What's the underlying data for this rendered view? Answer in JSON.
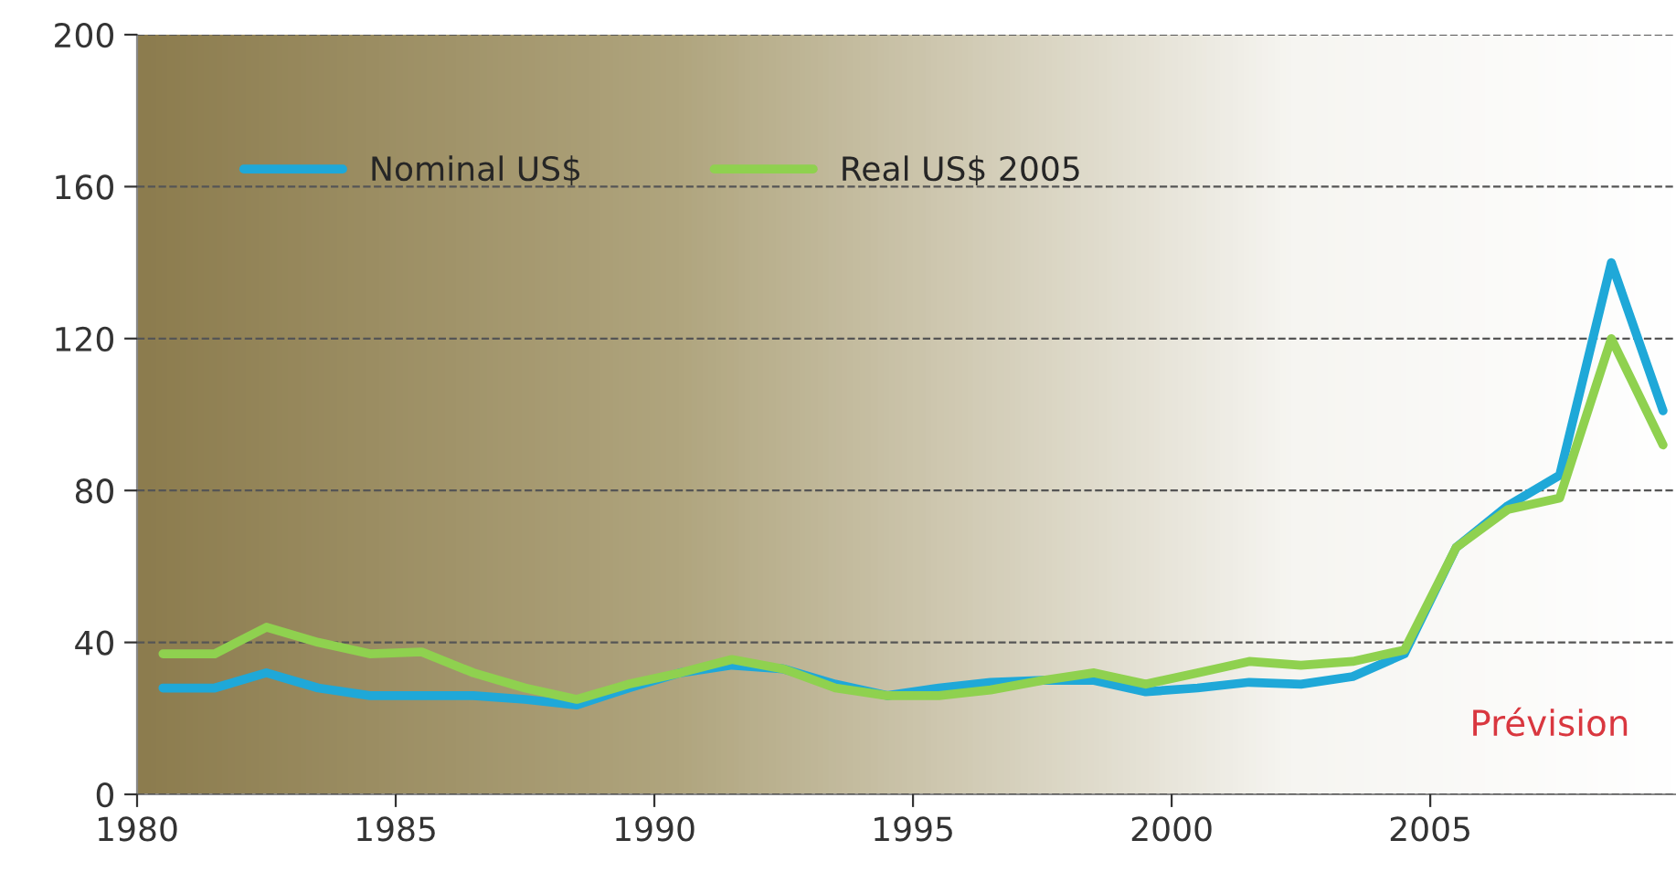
{
  "chart_data": {
    "type": "line",
    "x": [
      1980.5,
      1981.5,
      1982.5,
      1983.5,
      1984.5,
      1985.5,
      1986.5,
      1987.5,
      1988.5,
      1989.5,
      1990.5,
      1991.5,
      1992.5,
      1993.5,
      1994.5,
      1995.5,
      1996.5,
      1997.5,
      1998.5,
      1999.5,
      2000.5,
      2001.5,
      2002.5,
      2003.5,
      2004.5,
      2005.5,
      2006.5,
      2007.5,
      2008.5,
      2009.5
    ],
    "series": [
      {
        "name": "Nominal US$",
        "color": "#1fa8d8",
        "values": [
          28,
          28,
          32,
          28,
          26,
          26,
          26,
          25,
          23.5,
          28,
          32,
          34,
          33,
          29,
          26,
          28,
          29.5,
          30,
          30,
          27,
          28,
          29.5,
          29,
          31,
          37,
          65,
          76,
          84,
          140,
          101
        ]
      },
      {
        "name": "Real US$ 2005",
        "color": "#8fd14f",
        "values": [
          37,
          37,
          44,
          40,
          37,
          37.5,
          32,
          28,
          25,
          29,
          32,
          35.5,
          33,
          28,
          26,
          26,
          27.5,
          30,
          32,
          29,
          32,
          35,
          34,
          35,
          38,
          65,
          75,
          78,
          120,
          92
        ]
      }
    ],
    "xlim": [
      1980,
      2009.75
    ],
    "xticks": [
      1980,
      1985,
      1990,
      1995,
      2000,
      2005
    ],
    "ylim": [
      0,
      200
    ],
    "yticks": [
      0,
      40,
      80,
      120,
      160,
      200
    ],
    "grid": "y",
    "legend": "top left",
    "marker": "none",
    "line_style": "solid",
    "annotations": [
      "Prévision"
    ]
  }
}
